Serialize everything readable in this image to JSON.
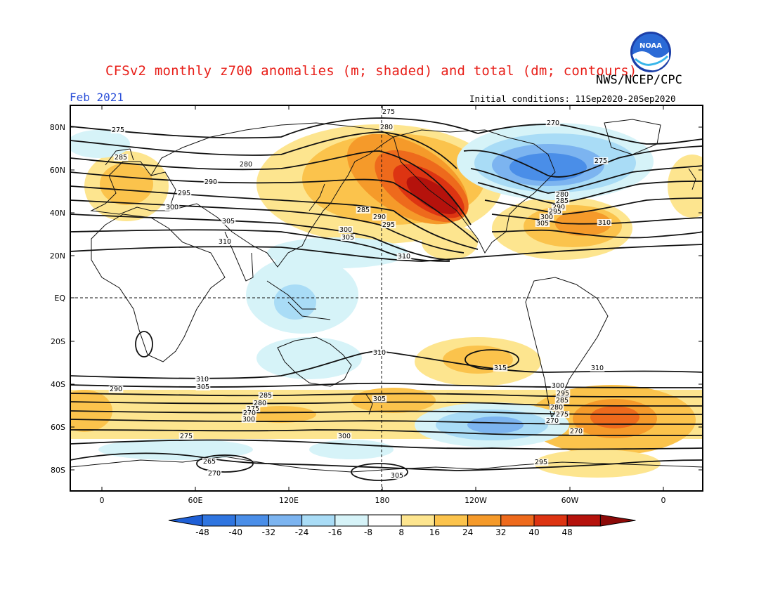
{
  "header": {
    "title": "CFSv2 monthly z700 anomalies (m; shaded) and total (dm; contours)",
    "agency": "NWS/NCEP/CPC",
    "month": "Feb 2021",
    "initial_conditions": "Initial conditions: 11Sep2020-20Sep2020",
    "logo_text": "NOAA"
  },
  "map": {
    "lat_labels": [
      "80N",
      "60N",
      "40N",
      "20N",
      "EQ",
      "20S",
      "40S",
      "60S",
      "80S"
    ],
    "lon_labels": [
      "0",
      "60E",
      "120E",
      "180",
      "120W",
      "60W",
      "0"
    ],
    "contour_labels": [
      {
        "text": "275",
        "id": "c275a"
      },
      {
        "text": "280",
        "id": "c280a"
      },
      {
        "text": "285",
        "id": "c285a"
      },
      {
        "text": "290",
        "id": "c290a"
      },
      {
        "text": "295",
        "id": "c295a"
      },
      {
        "text": "300",
        "id": "c300a"
      },
      {
        "text": "305",
        "id": "c305a"
      },
      {
        "text": "310",
        "id": "c310a"
      },
      {
        "text": "275",
        "id": "c275b"
      },
      {
        "text": "280",
        "id": "c280b"
      },
      {
        "text": "285",
        "id": "c285b"
      },
      {
        "text": "290",
        "id": "c290b"
      },
      {
        "text": "295",
        "id": "c295b"
      },
      {
        "text": "300",
        "id": "c300b"
      },
      {
        "text": "305",
        "id": "c305b"
      },
      {
        "text": "310",
        "id": "c310b"
      },
      {
        "text": "270",
        "id": "c270a"
      },
      {
        "text": "275",
        "id": "c275c"
      },
      {
        "text": "280",
        "id": "c280c"
      },
      {
        "text": "285",
        "id": "c285c"
      },
      {
        "text": "290",
        "id": "c290c"
      },
      {
        "text": "295",
        "id": "c295c"
      },
      {
        "text": "300",
        "id": "c300c"
      },
      {
        "text": "305",
        "id": "c305c"
      },
      {
        "text": "310",
        "id": "c310c"
      },
      {
        "text": "310",
        "id": "c310d"
      },
      {
        "text": "315",
        "id": "c315a"
      },
      {
        "text": "310",
        "id": "c310e"
      },
      {
        "text": "310",
        "id": "c310f"
      },
      {
        "text": "305",
        "id": "c305d"
      },
      {
        "text": "300",
        "id": "c300d"
      },
      {
        "text": "295",
        "id": "c295d"
      },
      {
        "text": "285",
        "id": "c285d"
      },
      {
        "text": "280",
        "id": "c280d"
      },
      {
        "text": "275",
        "id": "c275d"
      },
      {
        "text": "270",
        "id": "c270b"
      },
      {
        "text": "270",
        "id": "c270c"
      },
      {
        "text": "275",
        "id": "c275e"
      },
      {
        "text": "265",
        "id": "c265a"
      },
      {
        "text": "270",
        "id": "c270d"
      },
      {
        "text": "305",
        "id": "c305e"
      },
      {
        "text": "300",
        "id": "c300e"
      },
      {
        "text": "295",
        "id": "c295e"
      },
      {
        "text": "290",
        "id": "c290d"
      },
      {
        "text": "285",
        "id": "c285e"
      },
      {
        "text": "280",
        "id": "c280e"
      },
      {
        "text": "275",
        "id": "c275f"
      },
      {
        "text": "270",
        "id": "c270e"
      },
      {
        "text": "300",
        "id": "c300f"
      },
      {
        "text": "305",
        "id": "c305f"
      }
    ]
  },
  "colorbar": {
    "labels": [
      "-48",
      "-40",
      "-32",
      "-24",
      "-16",
      "-8",
      "8",
      "16",
      "24",
      "32",
      "40",
      "48"
    ],
    "colors": [
      "#1e5fd6",
      "#2f75e0",
      "#4a8ee8",
      "#7cb4f0",
      "#a9dcf6",
      "#d6f3f8",
      "#ffffff",
      "#fde58f",
      "#fbc34c",
      "#f59a2a",
      "#ee6a1c",
      "#dd3412",
      "#b5120c",
      "#8c0a08"
    ]
  }
}
